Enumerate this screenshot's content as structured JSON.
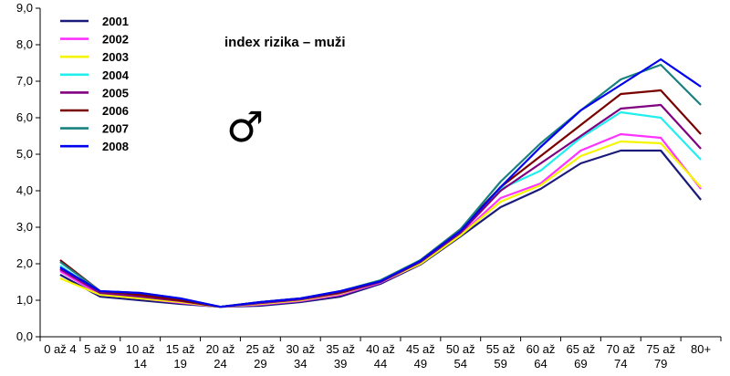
{
  "chart_data": {
    "type": "line",
    "title": "index rizika – muži",
    "symbol": "♂",
    "xlabel": "",
    "ylabel": "",
    "ylim": [
      0,
      9
    ],
    "yticks": [
      "0,0",
      "1,0",
      "2,0",
      "3,0",
      "4,0",
      "5,0",
      "6,0",
      "7,0",
      "8,0",
      "9,0"
    ],
    "categories": [
      [
        "0 až 4",
        ""
      ],
      [
        "5 až 9",
        ""
      ],
      [
        "10 až",
        "14"
      ],
      [
        "15 až",
        "19"
      ],
      [
        "20 až",
        "24"
      ],
      [
        "25 až",
        "29"
      ],
      [
        "30 až",
        "34"
      ],
      [
        "35 až",
        "39"
      ],
      [
        "40 až",
        "44"
      ],
      [
        "45 až",
        "49"
      ],
      [
        "50 až",
        "54"
      ],
      [
        "55 až",
        "59"
      ],
      [
        "60 až",
        "64"
      ],
      [
        "65 až",
        "69"
      ],
      [
        "70 až",
        "74"
      ],
      [
        "75 až",
        "79"
      ],
      [
        "80+",
        ""
      ]
    ],
    "grid": false,
    "legend_position": "top-left",
    "series": [
      {
        "name": "2001",
        "color": "#1a1a7a",
        "values": [
          1.7,
          1.1,
          1.0,
          0.9,
          0.82,
          0.85,
          0.95,
          1.1,
          1.45,
          1.98,
          2.75,
          3.55,
          4.05,
          4.75,
          5.1,
          5.1,
          3.75
        ]
      },
      {
        "name": "2002",
        "color": "#ff33ff",
        "values": [
          1.8,
          1.15,
          1.05,
          0.93,
          0.82,
          0.88,
          0.98,
          1.15,
          1.48,
          2.0,
          2.8,
          3.8,
          4.2,
          5.1,
          5.55,
          5.45,
          4.05
        ]
      },
      {
        "name": "2003",
        "color": "#f5f500",
        "values": [
          1.6,
          1.15,
          1.05,
          0.95,
          0.82,
          0.9,
          1.0,
          1.18,
          1.5,
          2.0,
          2.78,
          3.7,
          4.15,
          4.95,
          5.35,
          5.3,
          4.1
        ]
      },
      {
        "name": "2004",
        "color": "#22eeee",
        "values": [
          1.95,
          1.2,
          1.15,
          1.0,
          0.82,
          0.92,
          1.02,
          1.2,
          1.5,
          2.05,
          2.85,
          4.05,
          4.55,
          5.45,
          6.15,
          6.0,
          4.85
        ]
      },
      {
        "name": "2005",
        "color": "#800080",
        "values": [
          1.85,
          1.2,
          1.1,
          0.98,
          0.82,
          0.92,
          1.02,
          1.2,
          1.5,
          2.05,
          2.85,
          4.0,
          4.75,
          5.5,
          6.25,
          6.35,
          5.15
        ]
      },
      {
        "name": "2006",
        "color": "#7a0000",
        "values": [
          2.1,
          1.25,
          1.15,
          1.0,
          0.82,
          0.95,
          1.05,
          1.22,
          1.52,
          2.1,
          2.95,
          4.1,
          4.95,
          5.8,
          6.65,
          6.75,
          5.55
        ]
      },
      {
        "name": "2007",
        "color": "#1a8080",
        "values": [
          2.05,
          1.25,
          1.2,
          1.05,
          0.82,
          0.95,
          1.05,
          1.25,
          1.55,
          2.1,
          2.95,
          4.25,
          5.3,
          6.2,
          7.05,
          7.45,
          6.35
        ]
      },
      {
        "name": "2008",
        "color": "#0000ee",
        "values": [
          1.9,
          1.25,
          1.2,
          1.05,
          0.82,
          0.95,
          1.05,
          1.25,
          1.52,
          2.08,
          2.9,
          4.1,
          5.2,
          6.2,
          6.9,
          7.6,
          6.85
        ]
      }
    ]
  }
}
